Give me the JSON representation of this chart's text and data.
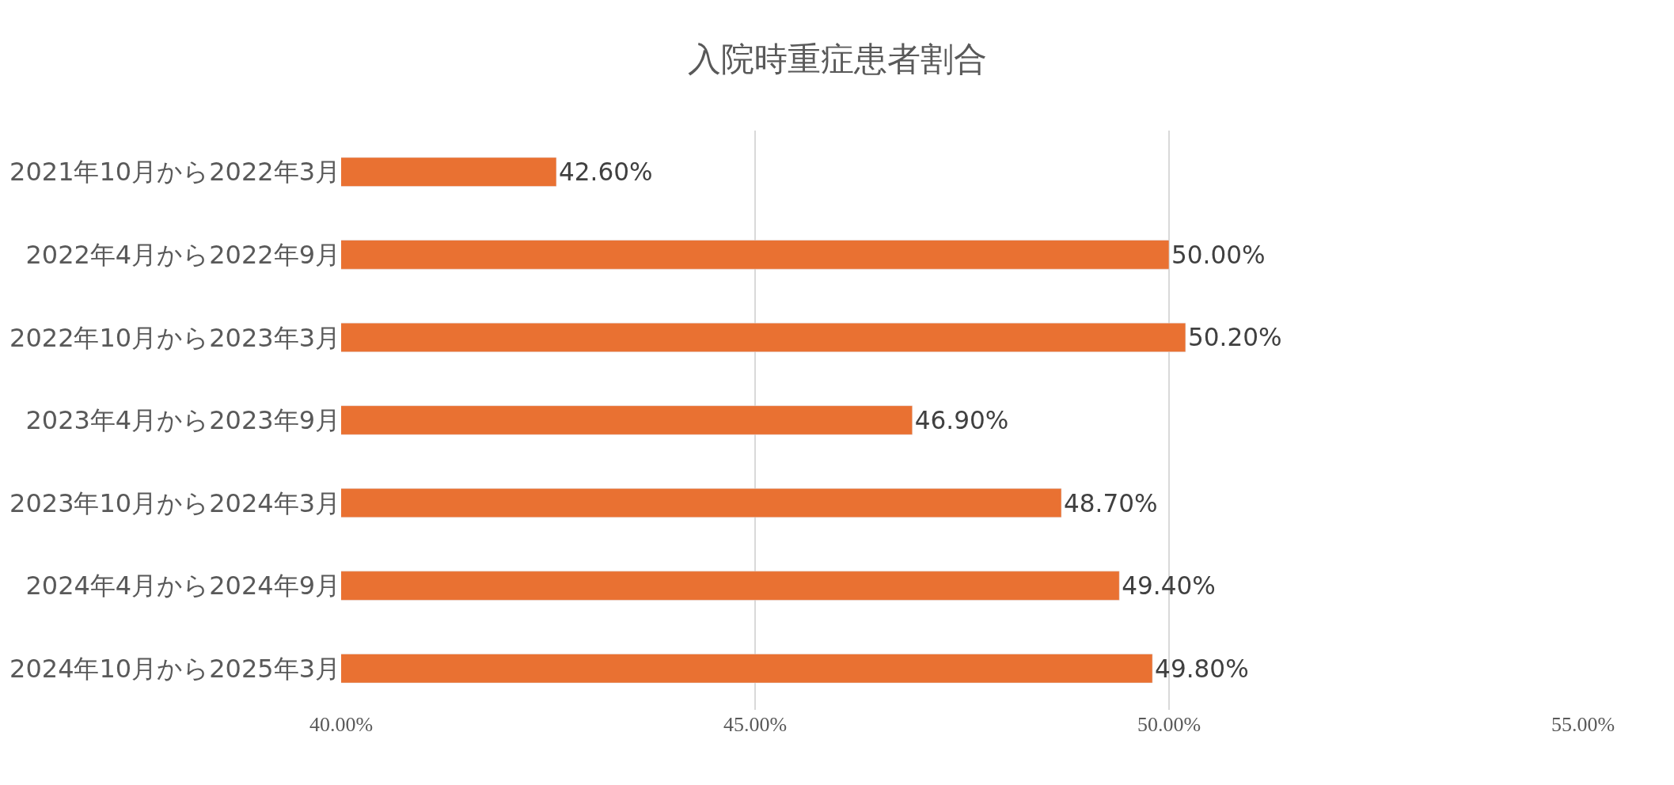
{
  "chart_data": {
    "type": "bar",
    "orientation": "horizontal",
    "title": "入院時重症患者割合",
    "categories": [
      "2021年10月から2022年3月",
      "2022年4月から2022年9月",
      "2022年10月から2023年3月",
      "2023年4月から2023年9月",
      "2023年10月から2024年3月",
      "2024年4月から2024年9月",
      "2024年10月から2025年3月"
    ],
    "values": [
      42.6,
      50.0,
      50.2,
      46.9,
      48.7,
      49.4,
      49.8
    ],
    "value_labels": [
      "42.60%",
      "50.00%",
      "50.20%",
      "46.90%",
      "48.70%",
      "49.40%",
      "49.80%"
    ],
    "color": "#e97132",
    "xlim": [
      40,
      55
    ],
    "xticks": [
      {
        "value": 40,
        "label": "40.00%"
      },
      {
        "value": 45,
        "label": "45.00%"
      },
      {
        "value": 50,
        "label": "50.00%"
      },
      {
        "value": 55,
        "label": "55.00%"
      }
    ],
    "grid": "x",
    "legend": false
  }
}
